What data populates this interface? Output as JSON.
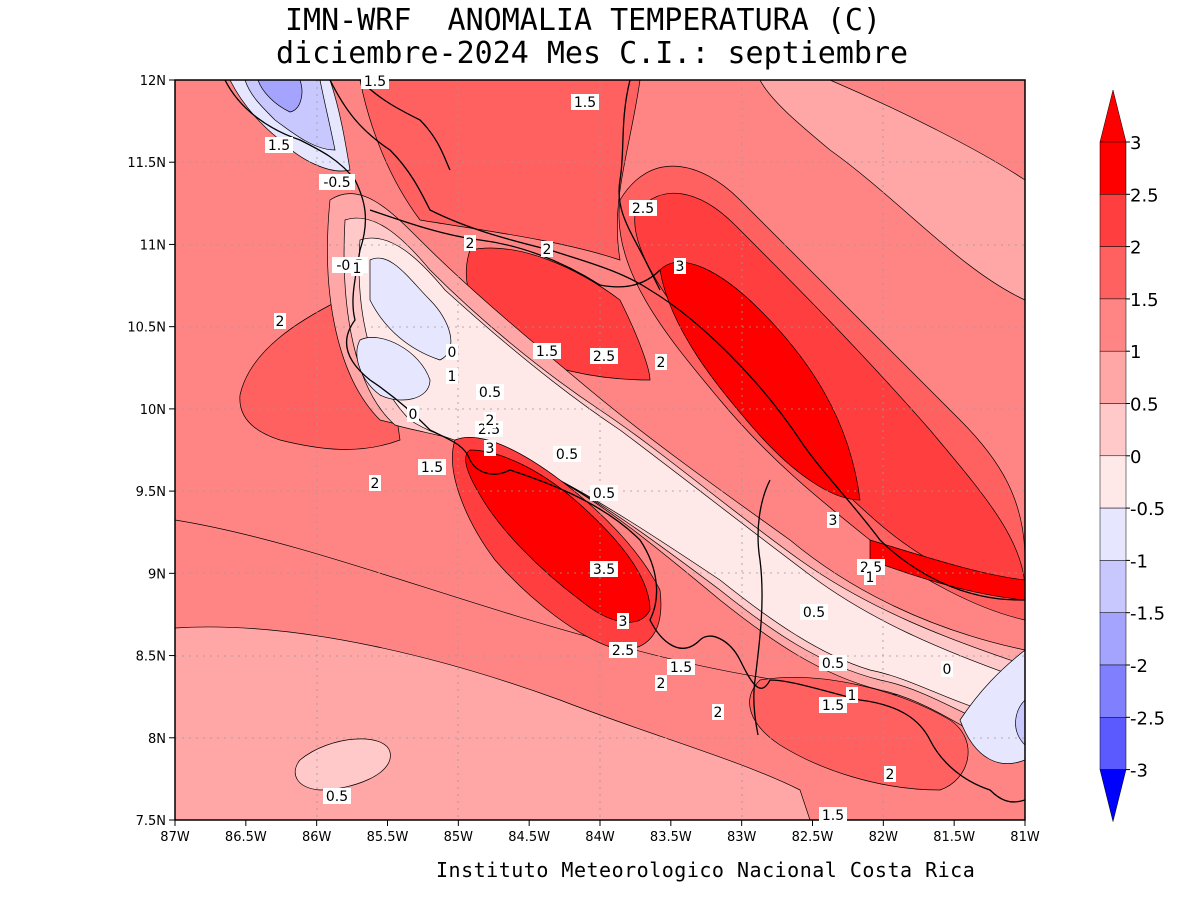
{
  "header": {
    "title_line1": "IMN-WRF  ANOMALIA TEMPERATURA (C)",
    "title_line2": " diciembre-2024 Mes C.I.: septiembre"
  },
  "footer": {
    "credit": "Instituto Meteorologico Nacional Costa Rica"
  },
  "axes": {
    "lon_ticks": [
      "87W",
      "86.5W",
      "86W",
      "85.5W",
      "85W",
      "84.5W",
      "84W",
      "83.5W",
      "83W",
      "82.5W",
      "82W",
      "81.5W",
      "81W"
    ],
    "lat_ticks": [
      "12N",
      "11.5N",
      "11N",
      "10.5N",
      "10N",
      "9.5N",
      "9N",
      "8.5N",
      "8N",
      "7.5N"
    ],
    "grid": true
  },
  "colorbar": {
    "labels": [
      "3",
      "2.5",
      "2",
      "1.5",
      "1",
      "0.5",
      "0",
      "-0.5",
      "-1",
      "-1.5",
      "-2",
      "-2.5",
      "-3"
    ],
    "colors": [
      "#ff0000",
      "#ff3f3f",
      "#ff6161",
      "#ff8585",
      "#ffa6a6",
      "#ffc9c9",
      "#ffe8e8",
      "#e6e6ff",
      "#c8c8ff",
      "#a4a4ff",
      "#8080ff",
      "#5a5aff",
      "#1c1cff"
    ],
    "top_arrow_color": "#ff0000",
    "bottom_arrow_color": "#0000ff"
  },
  "contour_labels": [
    "1.5",
    "1.5",
    "1.5",
    "-0.5",
    "2.5",
    "2",
    "2",
    "3",
    "-0.5",
    "1",
    "2",
    "0",
    "1.5",
    "2.5",
    "2",
    "1",
    "0.5",
    "0",
    "2",
    "2.5",
    "3",
    "0.5",
    "1.5",
    "2",
    "0.5",
    "3",
    "3.5",
    "2.5",
    "2",
    "3",
    "2.5",
    "1.5",
    "1",
    "0.5",
    "0.5",
    "0",
    "2",
    "1",
    "1.5",
    "2",
    "0.5",
    "1.5"
  ]
}
